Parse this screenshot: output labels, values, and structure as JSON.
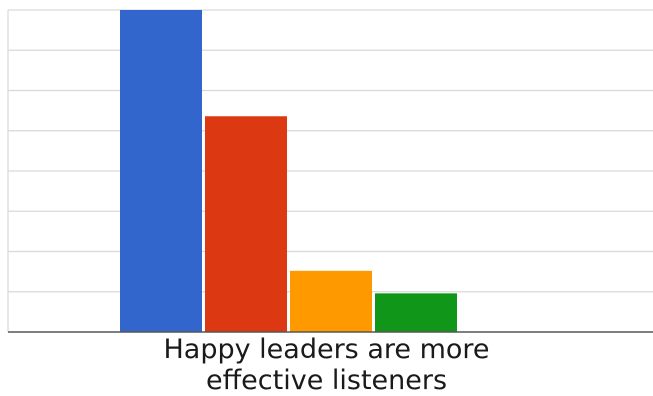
{
  "chart_data": {
    "type": "bar",
    "categories": [
      "",
      "",
      "",
      ""
    ],
    "values": [
      100,
      67,
      19,
      12
    ],
    "colors": [
      "#3366cc",
      "#dc3912",
      "#ff9900",
      "#109618"
    ],
    "ylim": [
      0,
      100
    ],
    "grid": true,
    "gridlines": 8,
    "title_lines": [
      "Happy leaders are more",
      "effective listeners"
    ]
  }
}
